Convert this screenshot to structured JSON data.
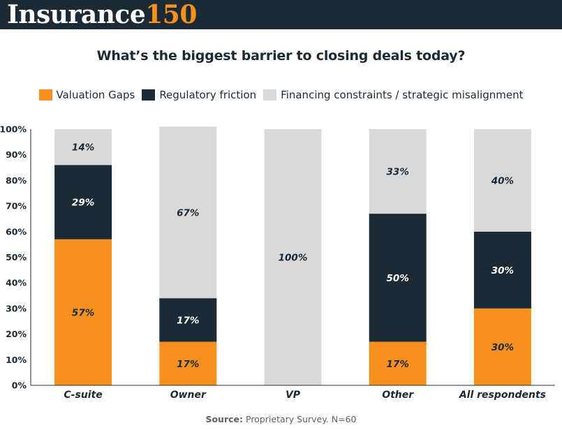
{
  "brand": {
    "name_white": "Insurance",
    "name_orange": "150"
  },
  "colors": {
    "bar_bg": "#1b2a35",
    "valuation": "#f7901e",
    "regulatory": "#1b2a35",
    "financing": "#d9d9d9"
  },
  "source": {
    "label": "Source:",
    "text": "Proprietary Survey. N=60"
  },
  "chart_data": {
    "type": "bar",
    "stacked": true,
    "title": "What’s the biggest barrier to closing deals today?",
    "categories": [
      "C-suite",
      "Owner",
      "VP",
      "Other",
      "All respondents"
    ],
    "series": [
      {
        "name": "Valuation Gaps",
        "values": [
          57,
          17,
          0,
          17,
          30
        ],
        "labels": [
          "57%",
          "17%",
          "",
          "17%",
          "30%"
        ]
      },
      {
        "name": "Regulatory friction",
        "values": [
          29,
          17,
          0,
          50,
          30
        ],
        "labels": [
          "29%",
          "17%",
          "",
          "50%",
          "30%"
        ]
      },
      {
        "name": "Financing constraints / strategic misalignment",
        "values": [
          14,
          67,
          100,
          33,
          40
        ],
        "labels": [
          "14%",
          "67%",
          "100%",
          "33%",
          "40%"
        ]
      }
    ],
    "yticks": [
      "0%",
      "10%",
      "20%",
      "30%",
      "40%",
      "50%",
      "60%",
      "70%",
      "80%",
      "90%",
      "100%"
    ],
    "ylim": [
      0,
      100
    ],
    "legend_position": "top-center",
    "xlabel": "",
    "ylabel": ""
  }
}
